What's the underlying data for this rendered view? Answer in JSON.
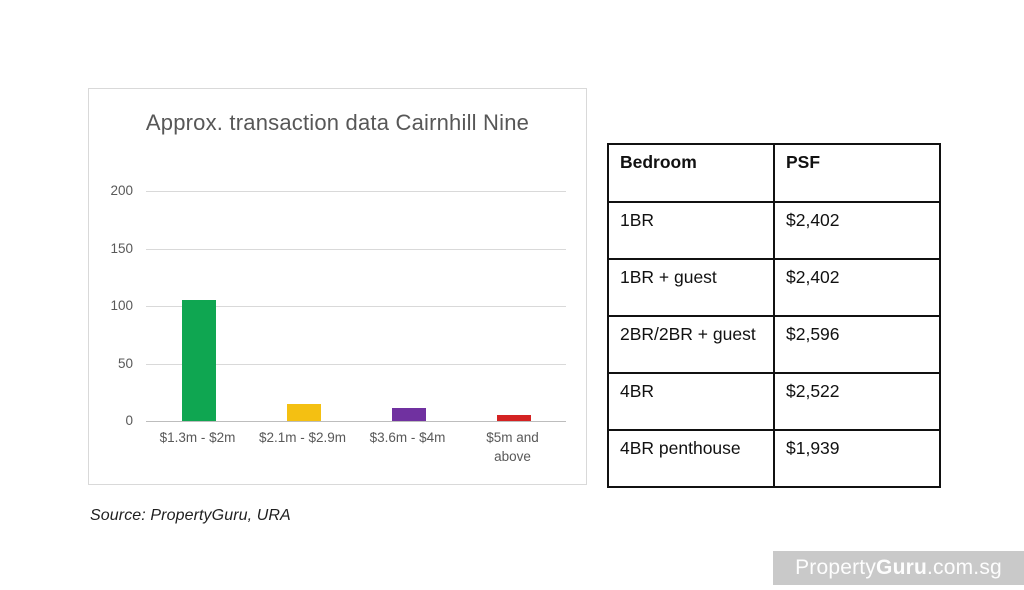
{
  "chart_data": {
    "type": "bar",
    "title": "Approx. transaction data Cairnhill Nine",
    "categories": [
      "$1.3m - $2m",
      "$2.1m - $2.9m",
      "$3.6m - $4m",
      "$5m and above"
    ],
    "values": [
      105,
      15,
      11,
      5
    ],
    "bar_colors": [
      "#0fa651",
      "#f4c012",
      "#7031a0",
      "#d42222"
    ],
    "yticks": [
      0,
      50,
      100,
      150,
      200
    ],
    "ylim": [
      0,
      200
    ],
    "xlabel": "",
    "ylabel": "",
    "grid": "horizontal",
    "legend": "none",
    "gridline_color": "#d9d9d9",
    "axis_color": "#bdbdbd",
    "title_color": "#575757",
    "tick_color": "#595959"
  },
  "source_note": "Source: PropertyGuru, URA",
  "table": {
    "headers": [
      "Bedroom",
      "PSF"
    ],
    "rows": [
      [
        "1BR",
        "$2,402"
      ],
      [
        "1BR + guest",
        "$2,402"
      ],
      [
        "2BR/2BR + guest",
        "$2,596"
      ],
      [
        "4BR",
        "$2,522"
      ],
      [
        "4BR penthouse",
        "$1,939"
      ]
    ]
  },
  "watermark": {
    "prefix": "Property",
    "bold": "Guru",
    "suffix": ".com.sg",
    "bar_color": "#c9c9c9",
    "text_color": "#fdfdfd"
  }
}
